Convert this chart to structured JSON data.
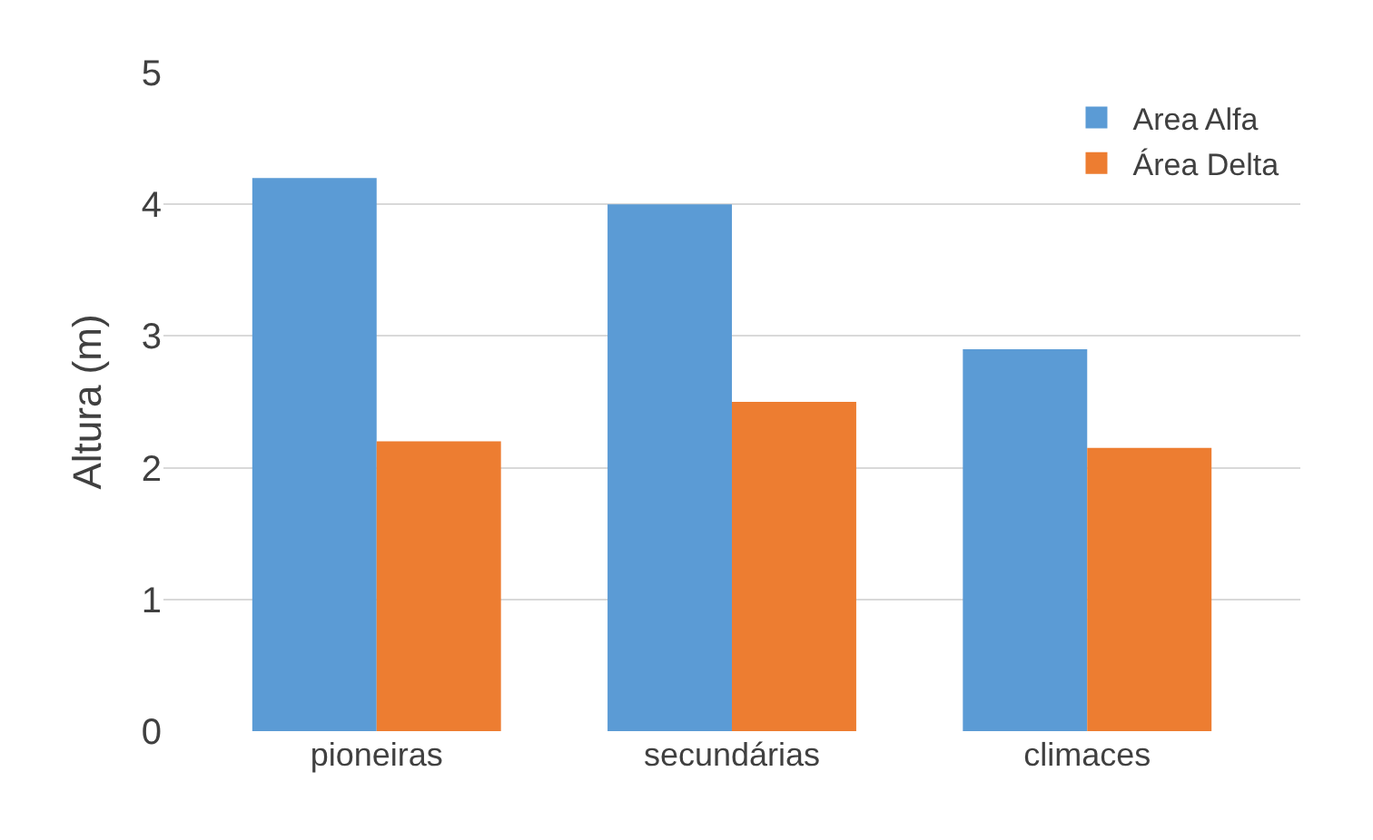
{
  "chart_data": {
    "type": "bar",
    "categories": [
      "pioneiras",
      "secundárias",
      "climaces"
    ],
    "series": [
      {
        "name": "Area Alfa",
        "color": "#5b9bd5",
        "values": [
          4.2,
          4.0,
          2.9
        ]
      },
      {
        "name": "Área Delta",
        "color": "#ed7d31",
        "values": [
          2.2,
          2.5,
          2.15
        ]
      }
    ],
    "ylabel": "Altura (m)",
    "ylim": [
      0,
      5
    ],
    "yticks": [
      0,
      1,
      2,
      3,
      4,
      5
    ],
    "grid": "y",
    "legend": "top right"
  }
}
